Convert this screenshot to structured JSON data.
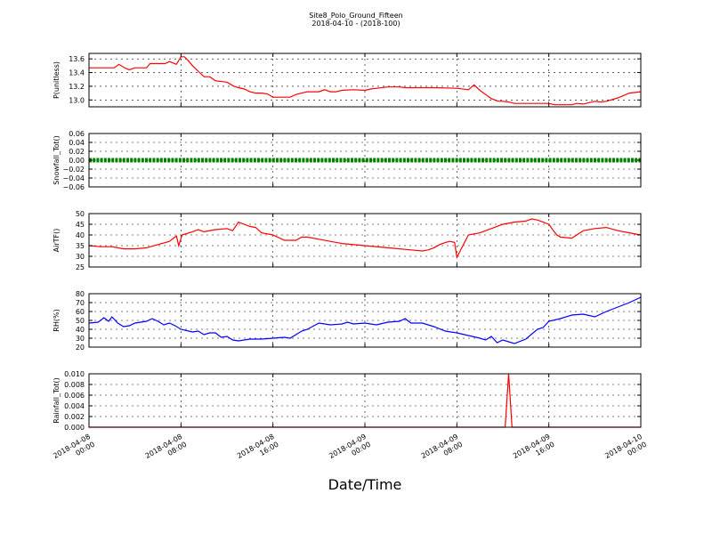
{
  "figure": {
    "title": "Site8_Polo_Ground_Fifteen",
    "subtitle": "2018-04-10 - (2018-100)",
    "xlabel": "Date/Time",
    "x_tick_labels": [
      [
        "2018-04-08",
        "00:00"
      ],
      [
        "2018-04-08",
        "08:00"
      ],
      [
        "2018-04-08",
        "16:00"
      ],
      [
        "2018-04-09",
        "00:00"
      ],
      [
        "2018-04-09",
        "08:00"
      ],
      [
        "2018-04-09",
        "16:00"
      ],
      [
        "2018-04-10",
        "00:00"
      ]
    ]
  },
  "chart_data": [
    {
      "type": "line",
      "ylabel": "P(unitless)",
      "xlim": [
        0,
        48
      ],
      "ylim": [
        12.9,
        13.68
      ],
      "yticks": [
        13.0,
        13.2,
        13.4,
        13.6
      ],
      "ytick_labels": [
        "13.0",
        "13.2",
        "13.4",
        "13.6"
      ],
      "grid": true,
      "series": [
        {
          "color": "#ff0000",
          "x": [
            0,
            1.5,
            2.2,
            2.6,
            3.1,
            3.5,
            4,
            5,
            5.3,
            6,
            6.6,
            7,
            7.6,
            8,
            8.3,
            8.6,
            9,
            9.5,
            10,
            10.5,
            11,
            12,
            12.6,
            13,
            13.5,
            14,
            14.5,
            15,
            15.5,
            16,
            17.5,
            18,
            18.5,
            19,
            20,
            20.5,
            21,
            21.5,
            22,
            23,
            24,
            24.5,
            25,
            26,
            27,
            27.5,
            28,
            30,
            32,
            33,
            33.5,
            34,
            34.5,
            35,
            35.6,
            36,
            36.5,
            37,
            39,
            40,
            40.5,
            41,
            42,
            42.4,
            43,
            44,
            44.5,
            45,
            46,
            47,
            48
          ],
          "y": [
            13.47,
            13.47,
            13.47,
            13.52,
            13.47,
            13.44,
            13.47,
            13.47,
            13.53,
            13.53,
            13.53,
            13.56,
            13.52,
            13.63,
            13.63,
            13.58,
            13.5,
            13.42,
            13.34,
            13.34,
            13.28,
            13.26,
            13.2,
            13.18,
            13.16,
            13.12,
            13.1,
            13.1,
            13.09,
            13.04,
            13.04,
            13.08,
            13.1,
            13.12,
            13.12,
            13.15,
            13.12,
            13.12,
            13.14,
            13.15,
            13.14,
            13.16,
            13.17,
            13.19,
            13.19,
            13.18,
            13.18,
            13.18,
            13.17,
            13.15,
            13.22,
            13.14,
            13.08,
            13.02,
            12.98,
            12.98,
            12.97,
            12.95,
            12.95,
            12.95,
            12.93,
            12.93,
            12.93,
            12.95,
            12.94,
            12.98,
            12.97,
            12.98,
            13.03,
            13.1,
            13.12
          ]
        }
      ]
    },
    {
      "type": "scatter",
      "ylabel": "Snowfall_Tot()",
      "xlim": [
        0,
        48
      ],
      "ylim": [
        -0.06,
        0.06
      ],
      "yticks": [
        -0.06,
        -0.04,
        -0.02,
        0.0,
        0.02,
        0.04,
        0.06
      ],
      "ytick_labels": [
        "−0.06",
        "−0.04",
        "−0.02",
        "0.00",
        "0.02",
        "0.04",
        "0.06"
      ],
      "grid": true,
      "series": [
        {
          "color": "#008000",
          "x": [
            0,
            48
          ],
          "y": [
            0.0,
            0.0
          ],
          "note_constant": "0.00"
        }
      ]
    },
    {
      "type": "line",
      "ylabel": "AirTF()",
      "xlim": [
        0,
        48
      ],
      "ylim": [
        25,
        50
      ],
      "yticks": [
        25,
        30,
        35,
        40,
        45,
        50
      ],
      "ytick_labels": [
        "25",
        "30",
        "35",
        "40",
        "45",
        "50"
      ],
      "grid": true,
      "series": [
        {
          "color": "#ff0000",
          "x": [
            0,
            1,
            2,
            3,
            4,
            5,
            6,
            7,
            7.6,
            7.8,
            8.1,
            9,
            9.5,
            10,
            11,
            12,
            12.5,
            13,
            14,
            14.5,
            15,
            16,
            17,
            18,
            18.5,
            19,
            20,
            22,
            24,
            26,
            28,
            29,
            29.5,
            30,
            30.5,
            31,
            31.4,
            31.8,
            32,
            33,
            34,
            35,
            36,
            37,
            38,
            38.5,
            39,
            40,
            40.4,
            40.7,
            41,
            42,
            43,
            44,
            45,
            46,
            47,
            48
          ],
          "y": [
            35,
            34.5,
            34.5,
            33.5,
            33.5,
            34,
            35.5,
            37,
            39.5,
            35,
            40,
            41.5,
            42.5,
            41.5,
            42.5,
            43,
            42,
            46,
            44,
            43.5,
            41,
            40,
            37.5,
            37.5,
            39,
            39,
            38,
            36,
            35,
            34,
            33,
            32.5,
            33,
            34,
            35.5,
            36.5,
            37,
            36.5,
            29.5,
            40,
            41,
            43,
            45,
            46,
            46.5,
            47.5,
            47,
            45,
            42,
            40,
            39,
            38.5,
            42,
            43,
            43.5,
            42,
            41,
            40
          ]
        }
      ]
    },
    {
      "type": "line",
      "ylabel": "RH(%)",
      "xlim": [
        0,
        48
      ],
      "ylim": [
        20,
        80
      ],
      "yticks": [
        20,
        30,
        40,
        50,
        60,
        70,
        80
      ],
      "ytick_labels": [
        "20",
        "30",
        "40",
        "50",
        "60",
        "70",
        "80"
      ],
      "grid": true,
      "series": [
        {
          "color": "#0000ff",
          "x": [
            0,
            0.8,
            1.3,
            1.7,
            2,
            2.5,
            3,
            3.5,
            4,
            5,
            5.5,
            6,
            6.5,
            7,
            7.5,
            8,
            9,
            9.5,
            10,
            10.5,
            11,
            11.5,
            12,
            12.5,
            13,
            14,
            15,
            16,
            17,
            17.5,
            18,
            18.5,
            19,
            20,
            21,
            22,
            22.5,
            23,
            24,
            25,
            26,
            27,
            27.5,
            28,
            29,
            30,
            31,
            32,
            33,
            34,
            34.5,
            35,
            35.5,
            36,
            37,
            38,
            39,
            39.5,
            40,
            41,
            42,
            43,
            44,
            45,
            46,
            47,
            48
          ],
          "y": [
            47,
            48,
            53,
            49,
            54,
            47,
            43,
            44,
            47,
            49,
            52,
            49,
            45,
            47,
            44,
            40,
            37,
            38,
            34,
            36,
            36,
            31,
            32,
            28,
            27,
            29,
            29,
            30,
            31,
            30,
            34,
            38,
            40,
            47,
            45,
            46,
            48,
            46,
            47,
            45,
            48,
            49,
            52,
            47,
            47,
            43,
            38,
            36,
            33,
            30,
            28,
            32,
            25,
            28,
            24,
            29,
            40,
            42,
            49,
            52,
            56,
            57,
            54,
            60,
            65,
            70,
            76
          ]
        }
      ]
    },
    {
      "type": "line",
      "ylabel": "Rainfall_Tot()",
      "xlim": [
        0,
        48
      ],
      "ylim": [
        0,
        0.01
      ],
      "yticks": [
        0.0,
        0.002,
        0.004,
        0.006,
        0.008,
        0.01
      ],
      "ytick_labels": [
        "0.000",
        "0.002",
        "0.004",
        "0.006",
        "0.008",
        "0.010"
      ],
      "grid": true,
      "series": [
        {
          "color": "#ff0000",
          "x": [
            0,
            36.2,
            36.5,
            36.8,
            48
          ],
          "y": [
            0,
            0,
            0.01,
            0,
            0
          ]
        }
      ]
    }
  ]
}
